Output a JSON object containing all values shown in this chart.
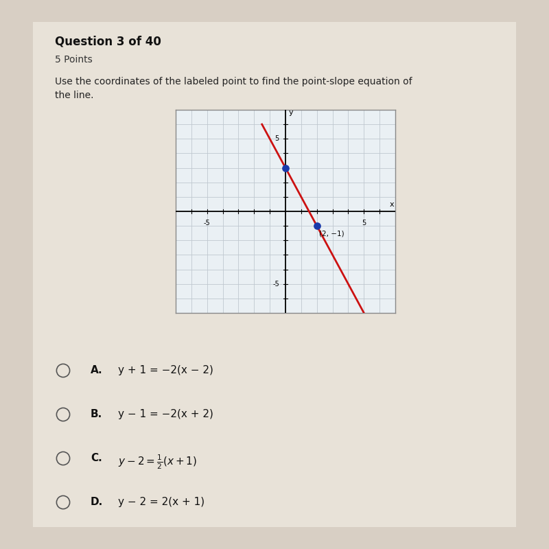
{
  "bg_color": "#d8cfc4",
  "content_bg": "#e8e2d8",
  "title": "Question 3 of 40",
  "subtitle": "5 Points",
  "question_line1": "Use the coordinates of the labeled point to find the point-slope equation of",
  "question_line2": "the line.",
  "graph": {
    "xlim": [
      -7,
      7
    ],
    "ylim": [
      -7,
      7
    ],
    "grid_color": "#c0c8d0",
    "grid_bg": "#eaf0f4",
    "border_color": "#888888",
    "line_color": "#cc1111",
    "slope": -2,
    "intercept": 3,
    "x_start": -1.5,
    "x_end": 5.2,
    "point1_x": 0,
    "point1_y": 3,
    "point2_x": 2,
    "point2_y": -1,
    "point_color": "#1a3aaa",
    "point_size": 45,
    "labeled_point_label": "(2, −1)"
  },
  "choices": [
    {
      "label": "A.",
      "text": "y + 1 = −2(x − 2)"
    },
    {
      "label": "B.",
      "text": "y − 1 = −2(x + 2)"
    },
    {
      "label": "C.",
      "text_latex": "y - 2 = \\frac{1}{2}(x+1)",
      "text_plain": "y − 2 = ½(x+1)"
    },
    {
      "label": "D.",
      "text": "y − 2 = 2(x + 1)"
    }
  ],
  "title_fontsize": 12,
  "subtitle_fontsize": 10,
  "question_fontsize": 10,
  "choice_fontsize": 11
}
